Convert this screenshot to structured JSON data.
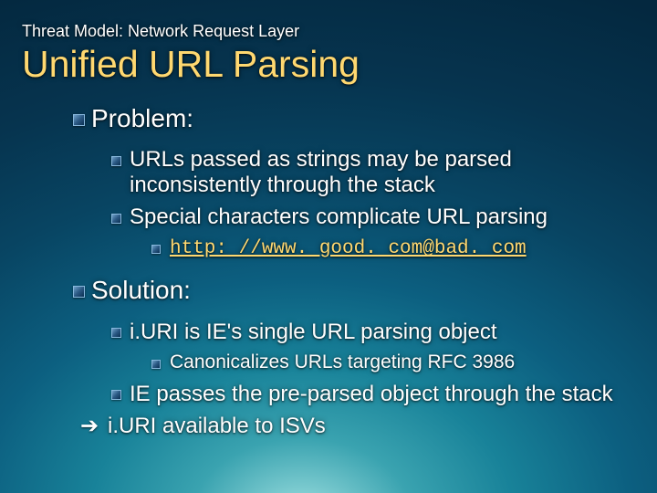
{
  "pretitle": "Threat Model: Network Request Layer",
  "title": "Unified URL Parsing",
  "sections": {
    "problem": {
      "heading": "Problem:",
      "items": [
        "URLs passed as strings may be parsed inconsistently through the stack",
        "Special characters complicate URL parsing"
      ],
      "example": "http: //www. good. com@bad. com"
    },
    "solution": {
      "heading": "Solution:",
      "first": "i.URI is IE's single URL parsing object",
      "canon": "Canonicalizes URLs targeting RFC 3986",
      "passes": "IE passes the pre-parsed object through the stack",
      "isv": "i.URI available to ISVs"
    }
  },
  "colors": {
    "title": "#ffd870",
    "text": "#ffffff",
    "link": "#ffd870"
  }
}
